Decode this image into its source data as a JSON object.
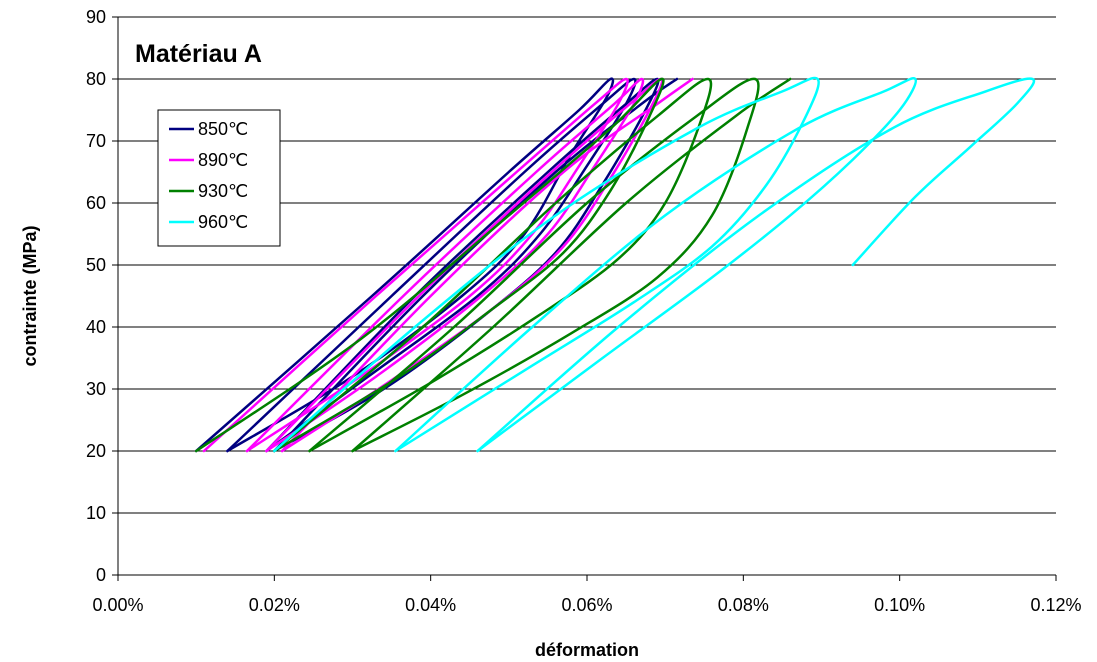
{
  "chart_data": {
    "type": "line",
    "title": "Matériau A",
    "xlabel": "déformation",
    "ylabel": "contrainte (MPa)",
    "xlim": [
      0,
      0.12
    ],
    "ylim": [
      0,
      90
    ],
    "x_unit": "%",
    "x_ticks": [
      0,
      0.02,
      0.04,
      0.06,
      0.08,
      0.1,
      0.12
    ],
    "x_tick_labels": [
      "0.00%",
      "0.02%",
      "0.04%",
      "0.06%",
      "0.08%",
      "0.10%",
      "0.12%"
    ],
    "y_ticks": [
      0,
      10,
      20,
      30,
      40,
      50,
      60,
      70,
      80,
      90
    ],
    "y_tick_labels": [
      "0",
      "10",
      "20",
      "30",
      "40",
      "50",
      "60",
      "70",
      "80",
      "90"
    ],
    "grid": "horizontal",
    "legend": "upper-left",
    "series": [
      {
        "name": "850℃",
        "color": "#000080",
        "cycles": [
          [
            [
              0.01,
              20
            ],
            [
              0.0325,
              45
            ],
            [
              0.05,
              65
            ],
            [
              0.059,
              75
            ],
            [
              0.063,
              80
            ],
            [
              0.0625,
              77
            ],
            [
              0.058,
              68
            ],
            [
              0.052,
              55
            ],
            [
              0.044,
              45
            ],
            [
              0.03,
              32
            ],
            [
              0.014,
              20
            ]
          ],
          [
            [
              0.014,
              20
            ],
            [
              0.035,
              45
            ],
            [
              0.052,
              65
            ],
            [
              0.062,
              76
            ],
            [
              0.066,
              80
            ],
            [
              0.065,
              76
            ],
            [
              0.06,
              66
            ],
            [
              0.054,
              55
            ],
            [
              0.046,
              45
            ],
            [
              0.032,
              32
            ],
            [
              0.019,
              20
            ]
          ],
          [
            [
              0.019,
              20
            ],
            [
              0.038,
              45
            ],
            [
              0.055,
              65
            ],
            [
              0.065,
              76
            ],
            [
              0.069,
              80
            ],
            [
              0.0675,
              75
            ],
            [
              0.062,
              63
            ],
            [
              0.056,
              52
            ],
            [
              0.047,
              42
            ],
            [
              0.034,
              30
            ],
            [
              0.02,
              20
            ]
          ],
          [
            [
              0.02,
              20
            ],
            [
              0.039,
              45
            ],
            [
              0.056,
              65
            ],
            [
              0.067,
              76
            ],
            [
              0.0715,
              80
            ]
          ]
        ]
      },
      {
        "name": "890℃",
        "color": "#ff00ff",
        "cycles": [
          [
            [
              0.011,
              20
            ],
            [
              0.033,
              45
            ],
            [
              0.051,
              65
            ],
            [
              0.061,
              76
            ],
            [
              0.065,
              80
            ],
            [
              0.064,
              76
            ],
            [
              0.059,
              66
            ],
            [
              0.053,
              55
            ],
            [
              0.045,
              45
            ],
            [
              0.031,
              32
            ],
            [
              0.0165,
              20
            ]
          ],
          [
            [
              0.0165,
              20
            ],
            [
              0.0365,
              45
            ],
            [
              0.0535,
              65
            ],
            [
              0.0635,
              76
            ],
            [
              0.067,
              80
            ],
            [
              0.066,
              76
            ],
            [
              0.061,
              66
            ],
            [
              0.055,
              55
            ],
            [
              0.0465,
              45
            ],
            [
              0.033,
              32
            ],
            [
              0.019,
              20
            ]
          ],
          [
            [
              0.019,
              20
            ],
            [
              0.0385,
              45
            ],
            [
              0.0555,
              65
            ],
            [
              0.0655,
              76
            ],
            [
              0.0695,
              80
            ],
            [
              0.068,
              75
            ],
            [
              0.063,
              64
            ],
            [
              0.057,
              53
            ],
            [
              0.048,
              43
            ],
            [
              0.0345,
              31
            ],
            [
              0.021,
              20
            ]
          ],
          [
            [
              0.021,
              20
            ],
            [
              0.04,
              45
            ],
            [
              0.057,
              65
            ],
            [
              0.069,
              76
            ],
            [
              0.0735,
              80
            ]
          ]
        ]
      },
      {
        "name": "930℃",
        "color": "#008000",
        "cycles": [
          [
            [
              0.01,
              20
            ],
            [
              0.031,
              38
            ],
            [
              0.05,
              58
            ],
            [
              0.063,
              72
            ],
            [
              0.0695,
              80
            ],
            [
              0.068,
              74
            ],
            [
              0.063,
              62
            ],
            [
              0.057,
              52
            ],
            [
              0.048,
              43
            ],
            [
              0.036,
              32
            ],
            [
              0.02,
              20
            ]
          ],
          [
            [
              0.02,
              20
            ],
            [
              0.039,
              40
            ],
            [
              0.056,
              60
            ],
            [
              0.069,
              74
            ],
            [
              0.0755,
              80
            ],
            [
              0.0745,
              73
            ],
            [
              0.07,
              60
            ],
            [
              0.064,
              51
            ],
            [
              0.054,
              42
            ],
            [
              0.04,
              31
            ],
            [
              0.0245,
              20
            ]
          ],
          [
            [
              0.0245,
              20
            ],
            [
              0.043,
              40
            ],
            [
              0.06,
              60
            ],
            [
              0.074,
              74
            ],
            [
              0.0815,
              80
            ],
            [
              0.0805,
              72
            ],
            [
              0.076,
              58
            ],
            [
              0.069,
              48
            ],
            [
              0.058,
              39
            ],
            [
              0.044,
              29
            ],
            [
              0.03,
              20
            ]
          ],
          [
            [
              0.03,
              20
            ],
            [
              0.048,
              40
            ],
            [
              0.065,
              60
            ],
            [
              0.079,
              74
            ],
            [
              0.086,
              80
            ]
          ]
        ]
      },
      {
        "name": "960℃",
        "color": "#00ffff",
        "cycles": [
          [
            [
              0.02,
              20
            ],
            [
              0.038,
              40
            ],
            [
              0.056,
              58
            ],
            [
              0.074,
              72
            ],
            [
              0.085,
              78
            ],
            [
              0.0895,
              80
            ],
            [
              0.088,
              74
            ],
            [
              0.083,
              63
            ],
            [
              0.076,
              53
            ],
            [
              0.066,
              44
            ],
            [
              0.052,
              33
            ],
            [
              0.0355,
              20
            ]
          ],
          [
            [
              0.0355,
              20
            ],
            [
              0.053,
              40
            ],
            [
              0.07,
              58
            ],
            [
              0.087,
              72
            ],
            [
              0.098,
              78
            ],
            [
              0.102,
              80
            ],
            [
              0.1,
              75
            ],
            [
              0.094,
              67
            ],
            [
              0.086,
              58
            ],
            [
              0.076,
              48
            ],
            [
              0.062,
              35
            ],
            [
              0.046,
              20
            ]
          ],
          [
            [
              0.046,
              20
            ],
            [
              0.064,
              40
            ],
            [
              0.082,
              58
            ],
            [
              0.099,
              72
            ],
            [
              0.111,
              78
            ],
            [
              0.117,
              80
            ],
            [
              0.115,
              76
            ],
            [
              0.109,
              69
            ],
            [
              0.102,
              61
            ],
            [
              0.094,
              50
            ]
          ]
        ]
      }
    ]
  }
}
